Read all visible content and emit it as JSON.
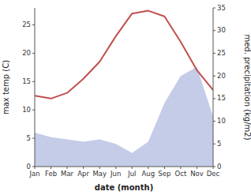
{
  "chart_data": {
    "type": "line",
    "xlabel": "date (month)",
    "ylabel": "max temp (C)",
    "y2label": "med. precipitation (kg/m2)",
    "categories": [
      "Jan",
      "Feb",
      "Mar",
      "Apr",
      "May",
      "Jun",
      "Jul",
      "Aug",
      "Sep",
      "Oct",
      "Nov",
      "Dec"
    ],
    "series": [
      {
        "type": "area",
        "axis": "y2",
        "color": "#c5cce8",
        "values": [
          7.5,
          6.5,
          6.0,
          5.5,
          6.0,
          5.0,
          3.0,
          5.5,
          14.0,
          20.0,
          22.0,
          11.0
        ]
      },
      {
        "type": "line",
        "color": "#c0504d",
        "values": [
          12.5,
          12.0,
          13.0,
          15.5,
          18.5,
          23.0,
          27.0,
          27.5,
          26.5,
          22.0,
          17.0,
          13.5
        ]
      }
    ],
    "ylim": [
      0,
      28
    ],
    "yticks": [
      0,
      5,
      10,
      15,
      20,
      25
    ],
    "y2lim": [
      0,
      35
    ],
    "y2ticks": [
      0,
      5,
      10,
      15,
      20,
      25,
      30,
      35
    ],
    "grid": false
  }
}
